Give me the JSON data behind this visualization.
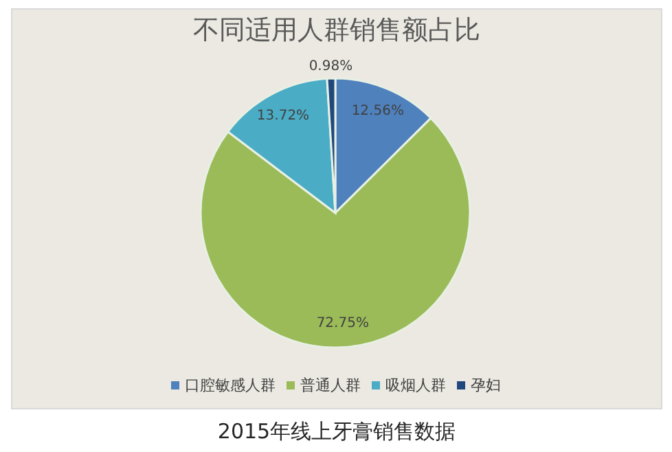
{
  "chart_data": {
    "type": "pie",
    "title": "不同适用人群销售额占比",
    "categories": [
      "口腔敏感人群",
      "普通人群",
      "吸烟人群",
      "孕妇"
    ],
    "values": [
      12.56,
      72.75,
      13.72,
      0.98
    ],
    "colors": [
      "#4f81bd",
      "#9bbb59",
      "#4bacc6",
      "#1f497d"
    ],
    "value_labels": [
      "12.56%",
      "72.75%",
      "13.72%",
      "0.98%"
    ],
    "legend": "bottom",
    "annotations": [
      "2015年线上牙膏销售数据"
    ]
  }
}
